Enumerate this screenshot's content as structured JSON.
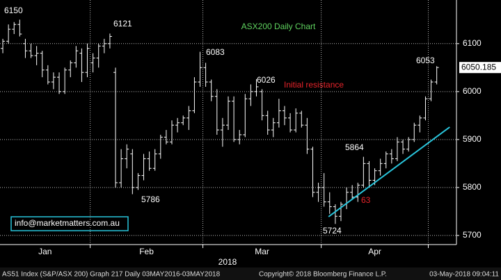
{
  "chart_data": {
    "type": "ohlc",
    "title": "ASX200 Daily Chart",
    "color": "#ffffff",
    "open": [
      6090,
      6105,
      6130,
      6140,
      6100,
      6085,
      6075,
      6080,
      6045,
      6020,
      6030,
      6000,
      6045,
      6060,
      6080,
      6040,
      6060,
      6070,
      6095,
      6100,
      6040,
      5810,
      5860,
      5870,
      5800,
      5825,
      5860,
      5840,
      5870,
      5905,
      5895,
      5930,
      5935,
      5945,
      5960,
      6020,
      6050,
      6020,
      5990,
      5920,
      5930,
      5980,
      5900,
      5910,
      5985,
      6000,
      6000,
      5950,
      5920,
      5935,
      5960,
      5945,
      5920,
      5955,
      5930,
      5880,
      5790,
      5800,
      5770,
      5760,
      5740,
      5765,
      5790,
      5780,
      5805,
      5850,
      5815,
      5835,
      5850,
      5870,
      5860,
      5895,
      5880,
      5900,
      5930,
      5945,
      5985,
      6020
    ],
    "high": [
      6110,
      6140,
      6145,
      6150,
      6110,
      6100,
      6095,
      6085,
      6055,
      6040,
      6040,
      6050,
      6065,
      6095,
      6090,
      6100,
      6080,
      6100,
      6110,
      6121,
      6050,
      5880,
      5890,
      5880,
      5830,
      5870,
      5875,
      5880,
      5910,
      5920,
      5940,
      5945,
      5950,
      5970,
      6030,
      6083,
      6060,
      6025,
      6005,
      5945,
      5990,
      5990,
      5920,
      5995,
      6015,
      6026,
      6005,
      5960,
      5945,
      5985,
      5970,
      5955,
      5965,
      5960,
      5945,
      5885,
      5810,
      5830,
      5790,
      5765,
      5770,
      5800,
      5805,
      5810,
      5864,
      5855,
      5840,
      5860,
      5875,
      5880,
      5905,
      5900,
      5905,
      5935,
      5950,
      5990,
      6025,
      6053
    ],
    "low": [
      6080,
      6100,
      6120,
      6115,
      6070,
      6070,
      6055,
      6030,
      6015,
      6005,
      5995,
      5995,
      6030,
      6050,
      6020,
      6030,
      6040,
      6050,
      6080,
      6090,
      5800,
      5800,
      5840,
      5786,
      5795,
      5815,
      5835,
      5835,
      5860,
      5890,
      5890,
      5915,
      5930,
      5920,
      5955,
      6010,
      6010,
      5980,
      5910,
      5885,
      5920,
      5895,
      5890,
      5905,
      5970,
      5990,
      5940,
      5910,
      5905,
      5925,
      5930,
      5915,
      5915,
      5925,
      5870,
      5780,
      5770,
      5760,
      5745,
      5724,
      5730,
      5755,
      5775,
      5770,
      5800,
      5800,
      5805,
      5825,
      5840,
      5850,
      5855,
      5870,
      5875,
      5895,
      5915,
      5940,
      5980,
      6015
    ],
    "close": [
      6105,
      6130,
      6140,
      6120,
      6085,
      6075,
      6080,
      6045,
      6020,
      6030,
      6000,
      6045,
      6060,
      6085,
      6040,
      6090,
      6070,
      6095,
      6100,
      6115,
      5810,
      5860,
      5880,
      5800,
      5825,
      5860,
      5840,
      5870,
      5905,
      5895,
      5930,
      5935,
      5945,
      5960,
      6020,
      6050,
      6020,
      5990,
      5920,
      5930,
      5980,
      5900,
      5910,
      5985,
      6000,
      6010,
      5950,
      5920,
      5935,
      5960,
      5945,
      5920,
      5955,
      5930,
      5880,
      5790,
      5800,
      5770,
      5760,
      5740,
      5765,
      5790,
      5780,
      5805,
      5850,
      5815,
      5835,
      5850,
      5870,
      5860,
      5895,
      5880,
      5900,
      5930,
      5945,
      5985,
      6020,
      6050.185
    ],
    "xlim": [
      -0.5,
      80.5
    ],
    "ylim": [
      5681,
      6191
    ],
    "yticks": [
      5700,
      5800,
      5900,
      6000,
      6100
    ],
    "xticks": [
      {
        "value": 7.5,
        "label": "Jan"
      },
      {
        "value": 25.5,
        "label": "Feb"
      },
      {
        "value": 46,
        "label": "Mar"
      },
      {
        "value": 66,
        "label": "Apr"
      }
    ],
    "xgrid": [
      15.5,
      35.5,
      56.5,
      75.5
    ],
    "grid": true,
    "x_label": "2018",
    "trendline": {
      "color": "#29c5dc",
      "x": [
        57.8,
        79.3
      ],
      "y": [
        5739,
        5926
      ]
    },
    "annotations": [
      {
        "text": "6150",
        "color": "#ffffff"
      },
      {
        "text": "6121",
        "color": "#ffffff"
      },
      {
        "text": "6083",
        "color": "#ffffff"
      },
      {
        "text": "6026",
        "color": "#ffffff"
      },
      {
        "text": "6053",
        "color": "#ffffff"
      },
      {
        "text": "5786",
        "color": "#ffffff"
      },
      {
        "text": "5724",
        "color": "#ffffff"
      },
      {
        "text": "5864",
        "color": "#ffffff"
      },
      {
        "text": "63",
        "color": "#e8232a"
      },
      {
        "text": "Initial resistance",
        "color": "#e8232a"
      }
    ],
    "title_color": "#5fd35f",
    "watermark": "info@marketmatters.com.au",
    "footer": {
      "left": "AS51 Index (S&P/ASX 200) Graph 217  Daily 03MAY2016-03MAY2018",
      "middle": "Copyright© 2018 Bloomberg Finance L.P.",
      "right": "03-May-2018 09:04:11"
    }
  }
}
